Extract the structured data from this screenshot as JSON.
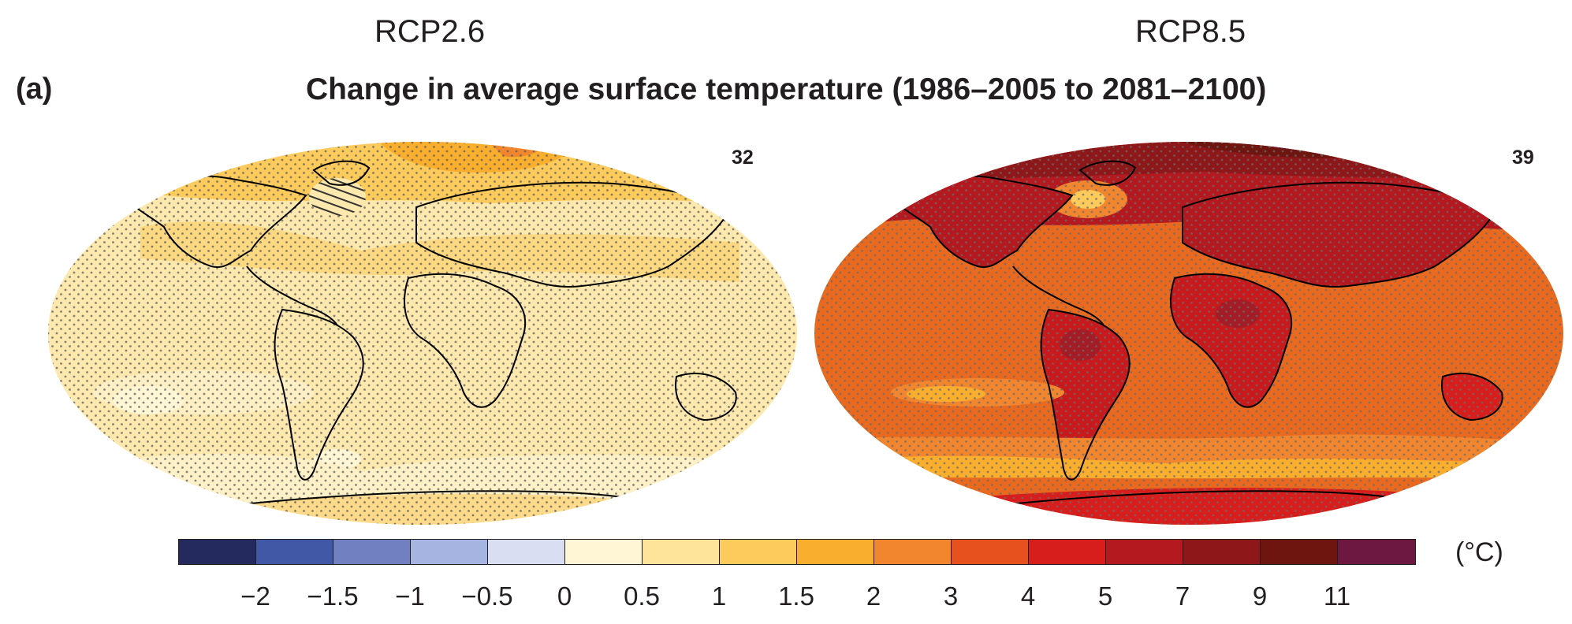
{
  "scenarios": {
    "left": {
      "label": "RCP2.6",
      "model_count": "32"
    },
    "right": {
      "label": "RCP8.5",
      "model_count": "39"
    }
  },
  "panel": {
    "label": "(a)",
    "title": "Change in average surface temperature (1986–2005 to 2081–2100)"
  },
  "legend": {
    "unit": "(°C)",
    "colors": [
      "#24295e",
      "#4058a6",
      "#7180c0",
      "#a5b4e1",
      "#d9def3",
      "#fff6d5",
      "#fee49b",
      "#fdcb5b",
      "#f9ae2e",
      "#f1862f",
      "#e6511e",
      "#d71e1c",
      "#b4191f",
      "#8e1719",
      "#6f1510",
      "#6c1840"
    ],
    "tick_labels": [
      "−2",
      "−1.5",
      "−1",
      "−0.5",
      "0",
      "0.5",
      "1",
      "1.5",
      "2",
      "3",
      "4",
      "5",
      "7",
      "9",
      "11"
    ]
  },
  "map_colors": {
    "left_base": "#fde8ae",
    "right_base": "#e9691f",
    "stipple": "#5a5a5a",
    "coastline": "#000000"
  }
}
